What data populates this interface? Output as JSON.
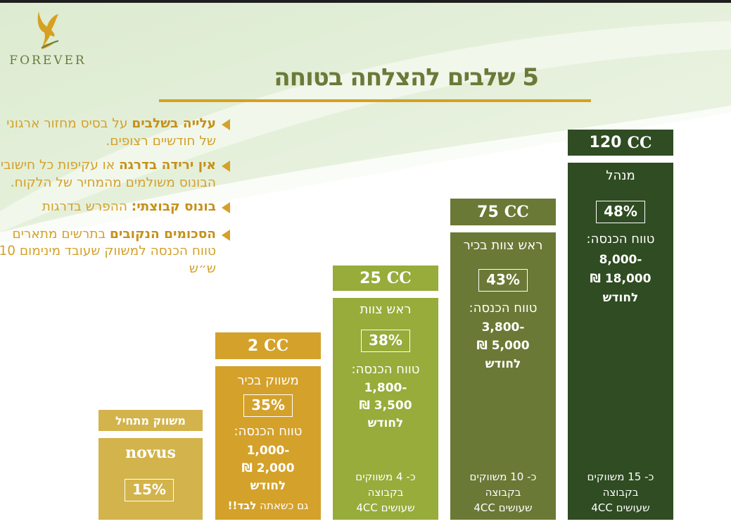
{
  "title": "5 שלבים להצלחה בטוחה",
  "logo": {
    "text": "FOREVER",
    "icon": "eagle-logo-icon"
  },
  "colors": {
    "novus": "#d3b34b",
    "cc2": "#d4a12a",
    "cc25": "#97ac3a",
    "cc75": "#6a7935",
    "cc120": "#2f4c22",
    "title": "#6b7a38",
    "accent": "#d6a020"
  },
  "bullets": [
    {
      "bold": "עלייה בשלבים",
      "text": " על בסיס מחזור ארגוני של חודשיים רצופים."
    },
    {
      "bold": "אין ירידה בדרגה",
      "text": " או עקיפות כל חישובי הבונוס משולמים מהמחיר של הלקוח."
    },
    {
      "bold": "בונוס קבוצתי:",
      "text": " ההפרש בדרגות"
    },
    {
      "bold": "הסכומים הנקובים",
      "text": " בתרשים מתארים טווח הכנסה למשווק שעובד מינימום 10 ש״ש"
    }
  ],
  "steps": [
    {
      "header": "משווק מתחיל",
      "name": "novus",
      "percent": "15%"
    },
    {
      "cc_value": "2",
      "cc_label": "CC",
      "name": "משווק בכיר",
      "percent": "35%",
      "income_label": "טווח הכנסה:",
      "income_low": "1,000-",
      "income_high": "₪ 2,000",
      "per_month": "לחודש",
      "note": "גם כשאתה ",
      "note_bold": "לבד!!"
    },
    {
      "cc_value": "25",
      "cc_label": "CC",
      "name": "ראש צוות",
      "percent": "38%",
      "income_label": "טווח הכנסה:",
      "income_low": "1,800-",
      "income_high": "₪ 3,500",
      "per_month": "לחודש",
      "group_1": "כ- 4 משווקים",
      "group_2": "בקבוצה",
      "group_3": "שעושים 4CC"
    },
    {
      "cc_value": "75",
      "cc_label": "CC",
      "name": "ראש צוות בכיר",
      "percent": "43%",
      "income_label": "טווח הכנסה:",
      "income_low": "3,800-",
      "income_high": "₪ 5,000",
      "per_month": "לחודש",
      "group_1": "כ- 10 משווקים",
      "group_2": "בקבוצה",
      "group_3": "שעושים 4CC"
    },
    {
      "cc_value": "120",
      "cc_label": "CC",
      "name": "מנהל",
      "percent": "48%",
      "income_label": "טווח הכנסה:",
      "income_low": "8,000-",
      "income_high": "₪ 18,000",
      "per_month": "לחודש",
      "group_1": "כ- 15 משווקים",
      "group_2": "בקבוצה",
      "group_3": "שעושים 4CC"
    }
  ]
}
